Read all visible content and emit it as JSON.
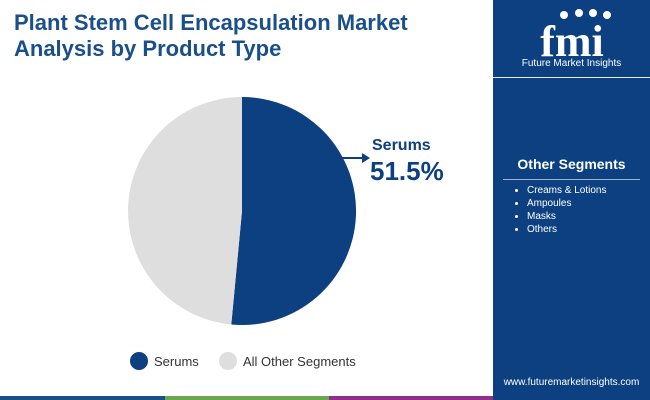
{
  "title": "Plant Stem Cell Encapsulation Market Analysis by Product Type",
  "brand": {
    "logo_letters": "fmi",
    "name": "Future Market Insights",
    "url": "www.futuremarketinsights.com"
  },
  "other_segments": {
    "heading": "Other Segments",
    "items": [
      "Creams & Lotions",
      "Ampoules",
      "Masks",
      "Others"
    ]
  },
  "colors": {
    "primary": "#0d4080",
    "secondary": "#dedede",
    "bar": [
      "#1b4f8a",
      "#6aa84f",
      "#8e2f8c"
    ]
  },
  "chart_data": {
    "type": "pie",
    "title": "Plant Stem Cell Encapsulation Market Analysis by Product Type",
    "slices": [
      {
        "label": "Serums",
        "value": 51.5,
        "value_label": "51.5%",
        "color": "#0d4080"
      },
      {
        "label": "All Other Segments",
        "value": 48.5,
        "color": "#dedede"
      }
    ],
    "legend": {
      "position": "bottom",
      "entries": [
        "Serums",
        "All Other Segments"
      ]
    },
    "annotation": {
      "label": "Serums",
      "value_label": "51.5%"
    }
  }
}
